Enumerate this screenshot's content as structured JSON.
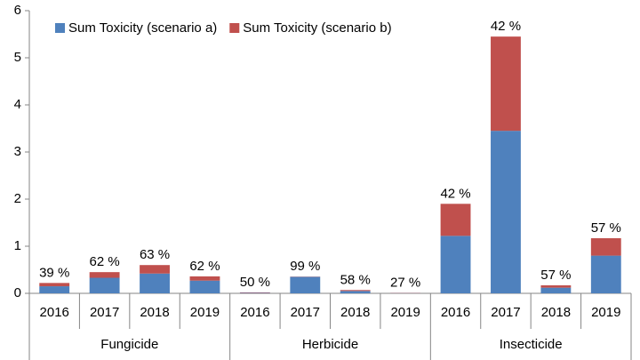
{
  "chart_data": {
    "type": "stacked_bar",
    "categories": [
      "2016",
      "2017",
      "2018",
      "2019",
      "2016",
      "2017",
      "2018",
      "2019",
      "2016",
      "2017",
      "2018",
      "2019"
    ],
    "groups": [
      "Fungicide",
      "Herbicide",
      "Insecticide"
    ],
    "series": [
      {
        "name": "Sum Toxicity (scenario a)",
        "color": "#4f81bd",
        "values": [
          0.15,
          0.33,
          0.42,
          0.27,
          0.01,
          0.35,
          0.05,
          0.005,
          1.22,
          3.45,
          0.12,
          0.8
        ]
      },
      {
        "name": "Sum Toxicity (scenario b)",
        "color": "#c0504d",
        "values": [
          0.07,
          0.12,
          0.18,
          0.09,
          0.01,
          0.005,
          0.02,
          0.005,
          0.68,
          2.0,
          0.05,
          0.37
        ]
      }
    ],
    "annotations": [
      "39 %",
      "62 %",
      "63 %",
      "62 %",
      "50 %",
      "99 %",
      "58 %",
      "27 %",
      "42 %",
      "42 %",
      "57 %",
      "57 %"
    ],
    "ylim": [
      0,
      6
    ],
    "yticks": [
      0,
      1,
      2,
      3,
      4,
      5,
      6
    ],
    "grid": false,
    "legend": "top-left"
  }
}
